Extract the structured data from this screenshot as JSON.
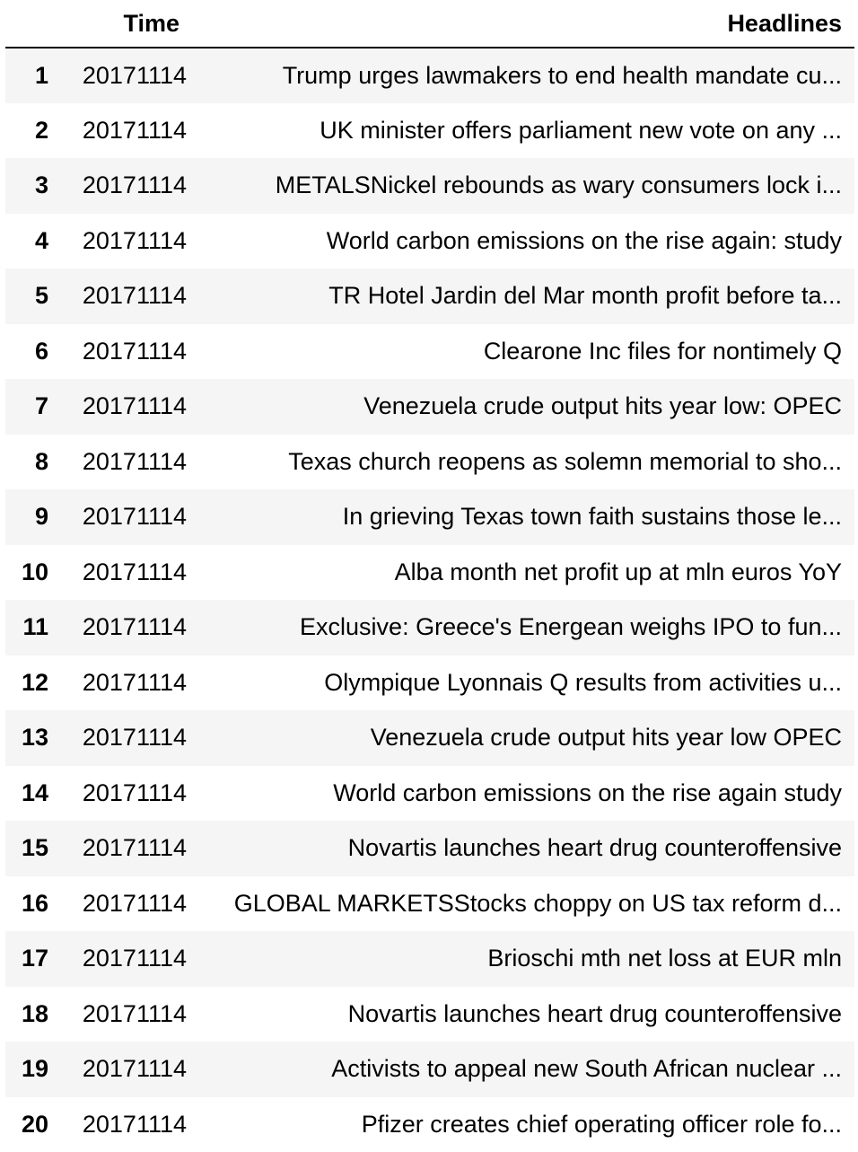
{
  "table": {
    "columns": {
      "index": "",
      "time": "Time",
      "headlines": "Headlines"
    },
    "rows": [
      {
        "index": "1",
        "time": "20171114",
        "headline": "Trump urges lawmakers to end health mandate cu..."
      },
      {
        "index": "2",
        "time": "20171114",
        "headline": "UK minister offers parliament new vote on any ..."
      },
      {
        "index": "3",
        "time": "20171114",
        "headline": "METALSNickel rebounds as wary consumers lock i..."
      },
      {
        "index": "4",
        "time": "20171114",
        "headline": "World carbon emissions on the rise again: study"
      },
      {
        "index": "5",
        "time": "20171114",
        "headline": "TR Hotel Jardin del Mar month profit before ta..."
      },
      {
        "index": "6",
        "time": "20171114",
        "headline": "Clearone Inc files for nontimely Q"
      },
      {
        "index": "7",
        "time": "20171114",
        "headline": "Venezuela crude output hits year low: OPEC"
      },
      {
        "index": "8",
        "time": "20171114",
        "headline": "Texas church reopens as solemn memorial to sho..."
      },
      {
        "index": "9",
        "time": "20171114",
        "headline": "In grieving Texas town faith sustains those le..."
      },
      {
        "index": "10",
        "time": "20171114",
        "headline": "Alba month net profit up at mln euros YoY"
      },
      {
        "index": "11",
        "time": "20171114",
        "headline": "Exclusive: Greece's Energean weighs IPO to fun..."
      },
      {
        "index": "12",
        "time": "20171114",
        "headline": "Olympique Lyonnais Q results from activities u..."
      },
      {
        "index": "13",
        "time": "20171114",
        "headline": "Venezuela crude output hits year low OPEC"
      },
      {
        "index": "14",
        "time": "20171114",
        "headline": "World carbon emissions on the rise again study"
      },
      {
        "index": "15",
        "time": "20171114",
        "headline": "Novartis launches heart drug counteroffensive"
      },
      {
        "index": "16",
        "time": "20171114",
        "headline": "GLOBAL MARKETSStocks choppy on US tax reform d..."
      },
      {
        "index": "17",
        "time": "20171114",
        "headline": "Brioschi mth net loss at EUR  mln"
      },
      {
        "index": "18",
        "time": "20171114",
        "headline": "Novartis launches heart drug counteroffensive"
      },
      {
        "index": "19",
        "time": "20171114",
        "headline": "Activists to appeal new South African nuclear ..."
      },
      {
        "index": "20",
        "time": "20171114",
        "headline": "Pfizer creates chief operating officer role fo..."
      }
    ]
  },
  "chart_data": {
    "type": "table",
    "columns": [
      "",
      "Time",
      "Headlines"
    ],
    "rows": [
      [
        "1",
        "20171114",
        "Trump urges lawmakers to end health mandate cu..."
      ],
      [
        "2",
        "20171114",
        "UK minister offers parliament new vote on any ..."
      ],
      [
        "3",
        "20171114",
        "METALSNickel rebounds as wary consumers lock i..."
      ],
      [
        "4",
        "20171114",
        "World carbon emissions on the rise again: study"
      ],
      [
        "5",
        "20171114",
        "TR Hotel Jardin del Mar month profit before ta..."
      ],
      [
        "6",
        "20171114",
        "Clearone Inc files for nontimely Q"
      ],
      [
        "7",
        "20171114",
        "Venezuela crude output hits year low: OPEC"
      ],
      [
        "8",
        "20171114",
        "Texas church reopens as solemn memorial to sho..."
      ],
      [
        "9",
        "20171114",
        "In grieving Texas town faith sustains those le..."
      ],
      [
        "10",
        "20171114",
        "Alba month net profit up at mln euros YoY"
      ],
      [
        "11",
        "20171114",
        "Exclusive: Greece's Energean weighs IPO to fun..."
      ],
      [
        "12",
        "20171114",
        "Olympique Lyonnais Q results from activities u..."
      ],
      [
        "13",
        "20171114",
        "Venezuela crude output hits year low OPEC"
      ],
      [
        "14",
        "20171114",
        "World carbon emissions on the rise again study"
      ],
      [
        "15",
        "20171114",
        "Novartis launches heart drug counteroffensive"
      ],
      [
        "16",
        "20171114",
        "GLOBAL MARKETSStocks choppy on US tax reform d..."
      ],
      [
        "17",
        "20171114",
        "Brioschi mth net loss at EUR  mln"
      ],
      [
        "18",
        "20171114",
        "Novartis launches heart drug counteroffensive"
      ],
      [
        "19",
        "20171114",
        "Activists to appeal new South African nuclear ..."
      ],
      [
        "20",
        "20171114",
        "Pfizer creates chief operating officer role fo..."
      ]
    ]
  }
}
